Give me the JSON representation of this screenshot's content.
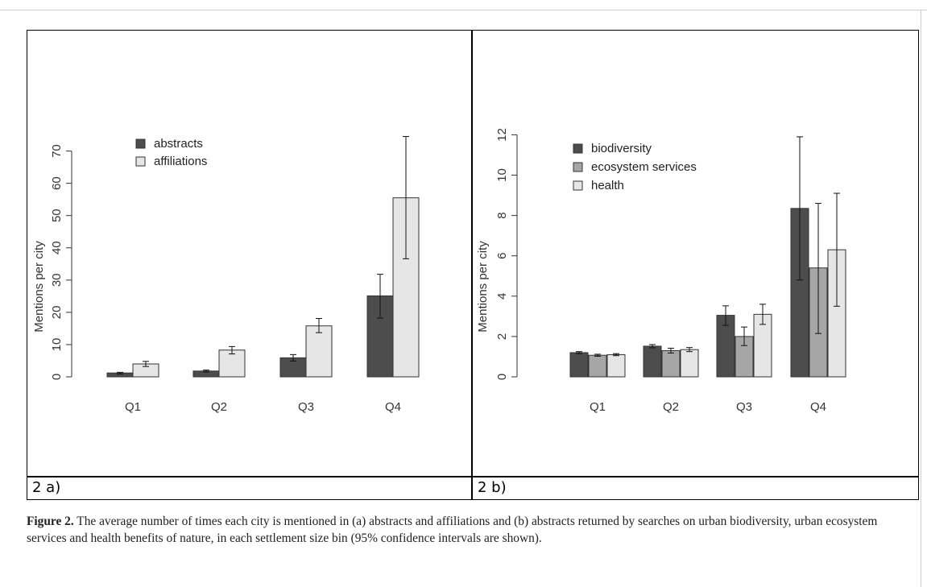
{
  "chart_data": [
    {
      "type": "bar",
      "panel": "2 a)",
      "categories": [
        "Q1",
        "Q2",
        "Q3",
        "Q4"
      ],
      "ylabel": "Mentions per city",
      "ylim": [
        0,
        70
      ],
      "yticks": [
        0,
        10,
        20,
        30,
        40,
        50,
        60,
        70
      ],
      "legend_position": "top-left",
      "grid": false,
      "series": [
        {
          "name": "abstracts",
          "color": "#4d4d4d",
          "values": [
            1.2,
            1.8,
            5.9,
            25.1
          ],
          "ci_low": [
            0.9,
            1.5,
            4.9,
            18.2
          ],
          "ci_high": [
            1.4,
            2.1,
            6.9,
            31.8
          ]
        },
        {
          "name": "affiliations",
          "color": "#e6e6e6",
          "values": [
            4.0,
            8.3,
            15.8,
            55.5
          ],
          "ci_low": [
            3.2,
            7.1,
            13.7,
            36.6
          ],
          "ci_high": [
            4.8,
            9.4,
            18.1,
            74.5
          ]
        }
      ]
    },
    {
      "type": "bar",
      "panel": "2 b)",
      "categories": [
        "Q1",
        "Q2",
        "Q3",
        "Q4"
      ],
      "ylabel": "Mentions per city",
      "ylim": [
        0,
        12
      ],
      "yticks": [
        0,
        2,
        4,
        6,
        8,
        10,
        12
      ],
      "legend_position": "top-left",
      "grid": false,
      "series": [
        {
          "name": "biodiversity",
          "color": "#4d4d4d",
          "values": [
            1.2,
            1.52,
            3.05,
            8.35
          ],
          "ci_low": [
            1.15,
            1.44,
            2.55,
            4.8
          ],
          "ci_high": [
            1.25,
            1.6,
            3.52,
            11.9
          ]
        },
        {
          "name": "ecosystem services",
          "color": "#a6a6a6",
          "values": [
            1.07,
            1.3,
            2.0,
            5.4
          ],
          "ci_low": [
            1.02,
            1.18,
            1.55,
            2.15
          ],
          "ci_high": [
            1.12,
            1.42,
            2.47,
            8.6
          ]
        },
        {
          "name": "health",
          "color": "#e6e6e6",
          "values": [
            1.1,
            1.35,
            3.1,
            6.3
          ],
          "ci_low": [
            1.05,
            1.25,
            2.6,
            3.5
          ],
          "ci_high": [
            1.15,
            1.45,
            3.6,
            9.1
          ]
        }
      ]
    }
  ],
  "labels": {
    "a": "2 a)",
    "b": "2 b)"
  },
  "caption": {
    "bold": "Figure 2.",
    "text": " The average number of times each city is mentioned in (a) abstracts and affiliations and (b) abstracts returned by searches on urban biodiversity, urban ecosystem services and health benefits of nature, in each settlement size bin (95% confidence intervals are shown)."
  }
}
